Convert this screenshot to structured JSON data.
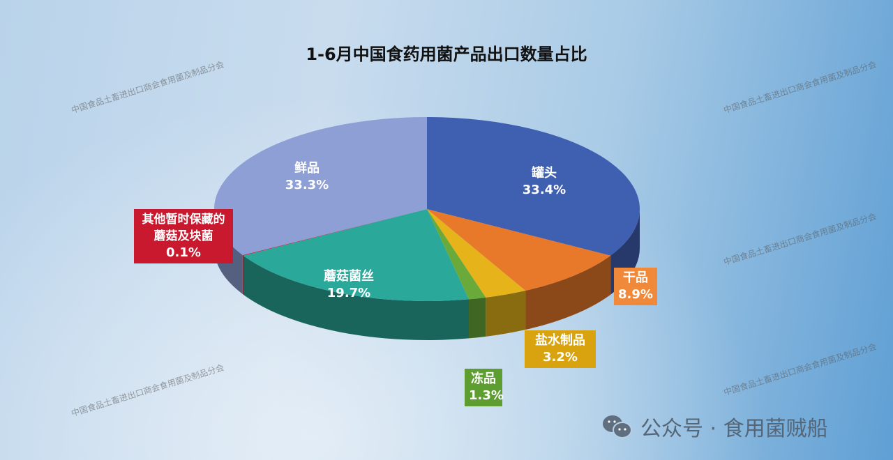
{
  "watermark": "中国食品土畜进出口商会食用菌及制品分会",
  "footer": {
    "icon": "wechat-icon",
    "text": "公众号 · 食用菌贼船"
  },
  "chart_data": {
    "type": "pie",
    "style": "3d",
    "title": "1-6月中国食药用菌产品出口数量占比",
    "slices": [
      {
        "name": "罐头",
        "value": 33.4,
        "label": "33.4%",
        "color": "#3f5fb0"
      },
      {
        "name": "干品",
        "value": 8.9,
        "label": "8.9%",
        "color": "#e8782a"
      },
      {
        "name": "盐水制品",
        "value": 3.2,
        "label": "3.2%",
        "color": "#e6b41a"
      },
      {
        "name": "冻品",
        "value": 1.3,
        "label": "1.3%",
        "color": "#6aaa3a"
      },
      {
        "name": "蘑菇菌丝",
        "value": 19.7,
        "label": "19.7%",
        "color": "#2aa89a"
      },
      {
        "name": "其他暂时保藏的蘑菇及块菌",
        "value": 0.1,
        "label": "0.1%",
        "color": "#c8192e"
      },
      {
        "name": "鲜品",
        "value": 33.3,
        "label": "33.3%",
        "color": "#8e9fd6"
      }
    ]
  }
}
